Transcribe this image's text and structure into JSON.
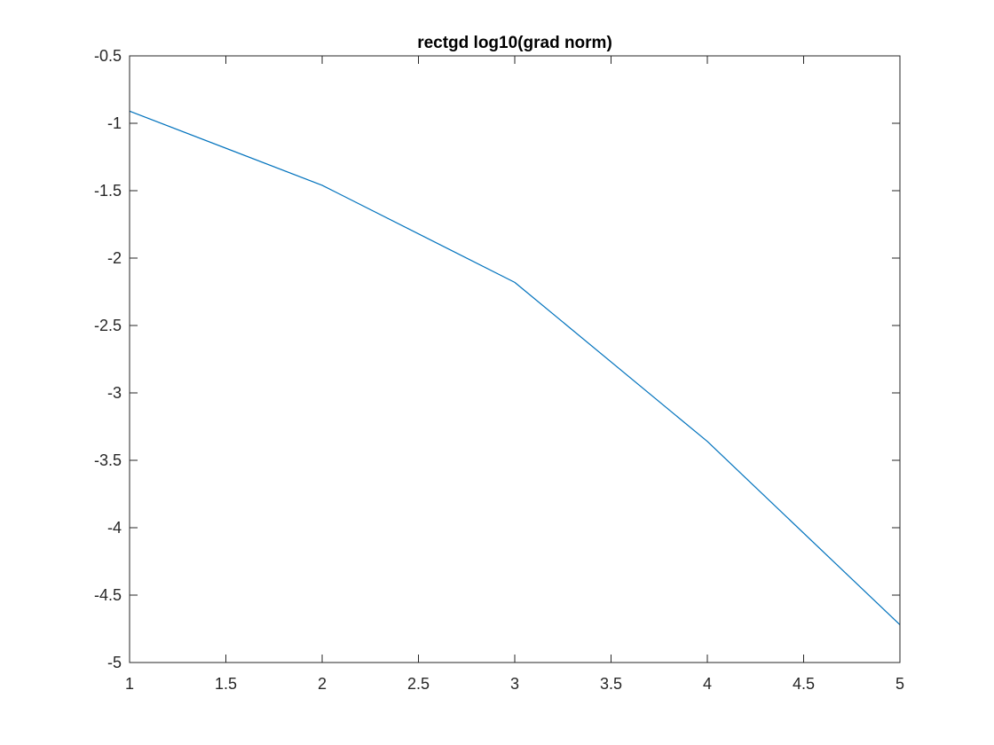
{
  "chart_data": {
    "type": "line",
    "title": "rectgd log10(grad norm)",
    "xlabel": "",
    "ylabel": "",
    "xlim": [
      1,
      5
    ],
    "ylim": [
      -5,
      -0.5
    ],
    "grid": false,
    "box": true,
    "xticks": [
      1,
      1.5,
      2,
      2.5,
      3,
      3.5,
      4,
      4.5,
      5
    ],
    "xtick_labels": [
      "1",
      "1.5",
      "2",
      "2.5",
      "3",
      "3.5",
      "4",
      "4.5",
      "5"
    ],
    "yticks": [
      -0.5,
      -1,
      -1.5,
      -2,
      -2.5,
      -3,
      -3.5,
      -4,
      -4.5,
      -5
    ],
    "ytick_labels": [
      "-0.5",
      "-1",
      "-1.5",
      "-2",
      "-2.5",
      "-3",
      "-3.5",
      "-4",
      "-4.5",
      "-5"
    ],
    "series": [
      {
        "x": [
          1,
          2,
          3,
          4,
          5
        ],
        "y": [
          -0.91,
          -1.46,
          -2.18,
          -3.36,
          -4.72
        ],
        "color": "#0072bd"
      }
    ]
  }
}
